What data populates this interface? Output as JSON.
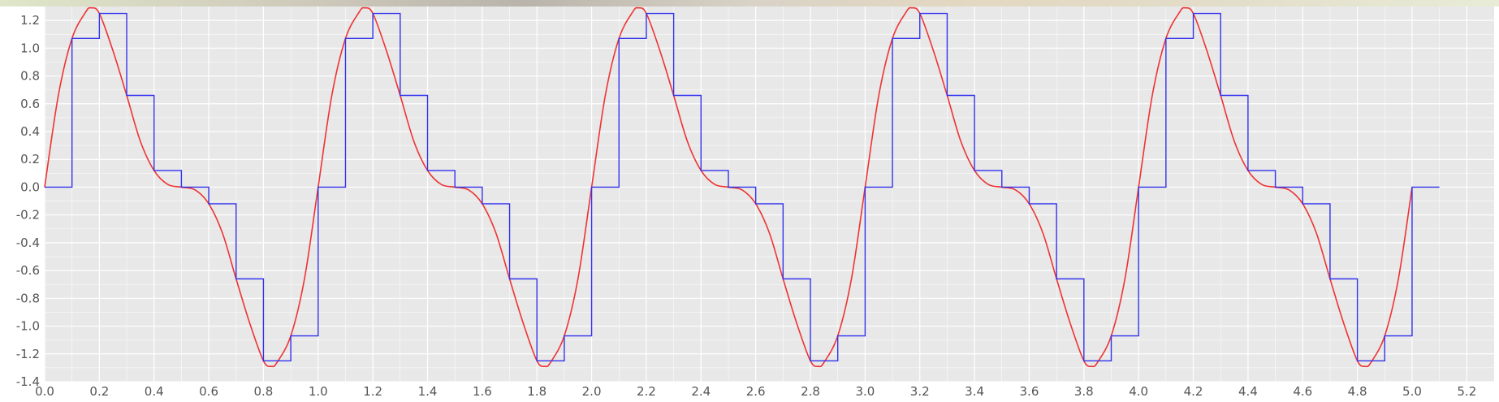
{
  "chart_data": {
    "type": "line",
    "title": "",
    "xlabel": "",
    "ylabel": "",
    "xlim": [
      0.0,
      5.3
    ],
    "ylim": [
      -1.4,
      1.3
    ],
    "x_ticks": [
      "0.0",
      "0.2",
      "0.4",
      "0.6",
      "0.8",
      "1.0",
      "1.2",
      "1.4",
      "1.6",
      "1.8",
      "2.0",
      "2.2",
      "2.4",
      "2.6",
      "2.8",
      "3.0",
      "3.2",
      "3.4",
      "3.6",
      "3.8",
      "4.0",
      "4.2",
      "4.4",
      "4.6",
      "4.8",
      "5.0",
      "5.2"
    ],
    "y_ticks": [
      "1.2",
      "1.0",
      "0.8",
      "0.6",
      "0.4",
      "0.2",
      "0.0",
      "-0.2",
      "-0.4",
      "-0.6",
      "-0.8",
      "-1.0",
      "-1.2",
      "-1.4"
    ],
    "grid": true,
    "background_color": "#e8e8e8",
    "grid_color": "#ffffff",
    "series": [
      {
        "kind": "continuous",
        "color": "#ee3333",
        "period": 1.0,
        "x_range": [
          0.0,
          5.0
        ],
        "cycle_points": [
          [
            0.0,
            0.0
          ],
          [
            0.05,
            0.66
          ],
          [
            0.1,
            1.07
          ],
          [
            0.15,
            1.26
          ],
          [
            0.17,
            1.29
          ],
          [
            0.2,
            1.25
          ],
          [
            0.25,
            0.98
          ],
          [
            0.3,
            0.66
          ],
          [
            0.35,
            0.33
          ],
          [
            0.4,
            0.12
          ],
          [
            0.45,
            0.02
          ],
          [
            0.5,
            0.0
          ],
          [
            0.55,
            -0.02
          ],
          [
            0.6,
            -0.12
          ],
          [
            0.65,
            -0.33
          ],
          [
            0.7,
            -0.66
          ],
          [
            0.75,
            -0.98
          ],
          [
            0.8,
            -1.25
          ],
          [
            0.83,
            -1.29
          ],
          [
            0.85,
            -1.26
          ],
          [
            0.9,
            -1.07
          ],
          [
            0.95,
            -0.66
          ],
          [
            1.0,
            0.0
          ]
        ]
      },
      {
        "kind": "step",
        "color": "#3333ee",
        "step_width": 0.1,
        "cycle_levels": [
          0.0,
          1.07,
          1.25,
          0.66,
          0.12,
          0.0,
          -0.12,
          -0.66,
          -1.25,
          -1.07
        ],
        "x_range": [
          0.0,
          5.1
        ]
      }
    ]
  }
}
